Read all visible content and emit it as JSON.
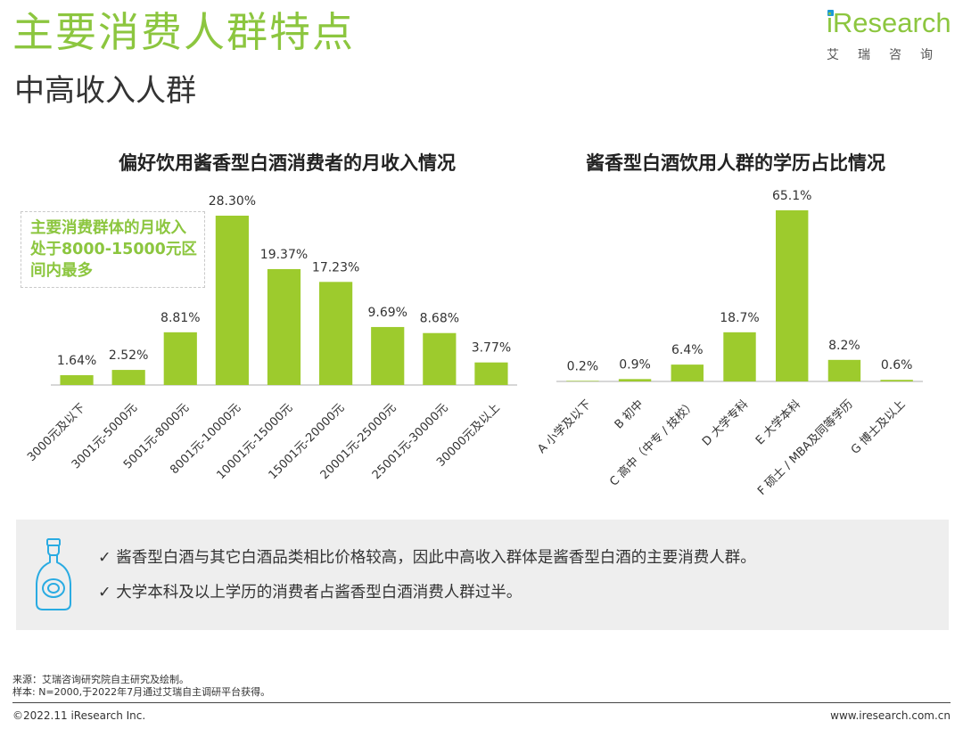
{
  "header": {
    "title": "主要消费人群特点",
    "subtitle": "中高收入人群"
  },
  "brand": {
    "logo_text": "Research",
    "logo_sub": "艾瑞咨询",
    "accent_color": "#8cc63f",
    "bar_color": "#9dcb2d",
    "dot_color": "#1b9ad6"
  },
  "callout": {
    "text": "主要消费群体的月收入处于8000-15000元区间内最多"
  },
  "chart_data": [
    {
      "type": "bar",
      "title": "偏好饮用酱香型白酒消费者的月收入情况",
      "categories": [
        "3000元及以下",
        "3001元-5000元",
        "5001元-8000元",
        "8001元-10000元",
        "10001元-15000元",
        "15001元-20000元",
        "20001元-25000元",
        "25001元-30000元",
        "30000元及以上"
      ],
      "values": [
        1.64,
        2.52,
        8.81,
        28.3,
        19.37,
        17.23,
        9.69,
        8.68,
        3.77
      ],
      "labels": [
        "1.64%",
        "2.52%",
        "8.81%",
        "28.30%",
        "19.37%",
        "17.23%",
        "9.69%",
        "8.68%",
        "3.77%"
      ],
      "unit": "%",
      "ylim": [
        0,
        28.3
      ],
      "grid": false,
      "xlabel": "",
      "ylabel": ""
    },
    {
      "type": "bar",
      "title": "酱香型白酒饮用人群的学历占比情况",
      "categories": [
        "A 小学及以下",
        "B 初中",
        "C 高中（中专 / 技校）",
        "D 大学专科",
        "E 大学本科",
        "F 硕士 / MBA及同等学历",
        "G 博士及以上"
      ],
      "values": [
        0.2,
        0.9,
        6.4,
        18.7,
        65.1,
        8.2,
        0.6
      ],
      "labels": [
        "0.2%",
        "0.9%",
        "6.4%",
        "18.7%",
        "65.1%",
        "8.2%",
        "0.6%"
      ],
      "unit": "%",
      "ylim": [
        0,
        65.1
      ],
      "grid": false,
      "xlabel": "",
      "ylabel": ""
    }
  ],
  "summary": {
    "points": [
      "✓ 酱香型白酒与其它白酒品类相比价格较高，因此中高收入群体是酱香型白酒的主要消费人群。",
      "✓ 大学本科及以上学历的消费者占酱香型白酒消费人群过半。"
    ],
    "icon": "liquor-bottle-icon"
  },
  "footer": {
    "source": "来源：艾瑞咨询研究院自主研究及绘制。",
    "sample": "样本: N=2000,于2022年7月通过艾瑞自主调研平台获得。",
    "copyright": "©2022.11 iResearch Inc.",
    "website": "www.iresearch.com.cn"
  }
}
